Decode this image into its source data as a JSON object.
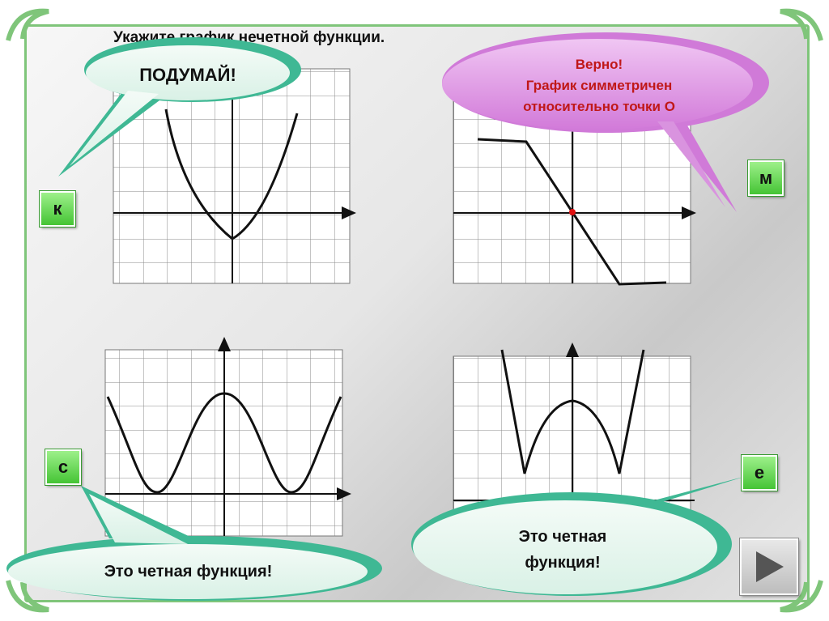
{
  "title": "Укажите график нечетной функции.",
  "graphs": [
    {
      "label": "к",
      "kind": "parabola"
    },
    {
      "label": "м",
      "kind": "odd-piecewise"
    },
    {
      "label": "с",
      "kind": "w-curve"
    },
    {
      "label": "е",
      "kind": "w-abs-curve"
    }
  ],
  "bubbles": {
    "think": "ПОДУМАЙ!",
    "correct_line1": "Верно!",
    "correct_line2": "График симметричен",
    "correct_line3": "относительно точки О",
    "even_left": "Это четная функция!",
    "even_right_line1": "Это четная",
    "even_right_line2": "функция!"
  },
  "colors": {
    "frame": "#7fc57a",
    "label_green": "#45c435",
    "correct_bubble": "#d07ad8",
    "correct_text": "#c01818",
    "even_bubble": "#3fb894",
    "think_bubble": "#3fb894",
    "origin_point": "#e01010"
  },
  "nav": {
    "next_icon": "play-triangle-icon"
  }
}
